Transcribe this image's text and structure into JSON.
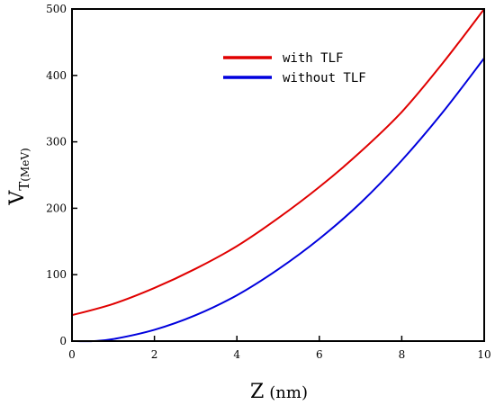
{
  "chart_data": {
    "type": "line",
    "title": "",
    "xlabel": "Z",
    "xlabel_unit": "(nm)",
    "ylabel": "V",
    "ylabel_sub": "T",
    "ylabel_unit": "(MeV)",
    "xlim": [
      0,
      10
    ],
    "ylim": [
      0,
      500
    ],
    "xticks": [
      0,
      2,
      4,
      6,
      8,
      10
    ],
    "yticks": [
      0,
      100,
      200,
      300,
      400,
      500
    ],
    "grid": false,
    "legend_position": "top-right",
    "series": [
      {
        "name": "with TLF",
        "color": "#e00000",
        "x": [
          0,
          1,
          2,
          3,
          4,
          5,
          6,
          7,
          8,
          9,
          10
        ],
        "y": [
          39,
          56,
          80,
          109,
          143,
          185,
          232,
          285,
          345,
          419,
          500
        ]
      },
      {
        "name": "without TLF",
        "color": "#0000dd",
        "x": [
          0,
          0.5,
          1,
          2,
          3,
          4,
          5,
          6,
          7,
          8,
          9,
          10
        ],
        "y": [
          0,
          0,
          3,
          17,
          39,
          69,
          108,
          154,
          208,
          272,
          345,
          426
        ]
      }
    ]
  }
}
